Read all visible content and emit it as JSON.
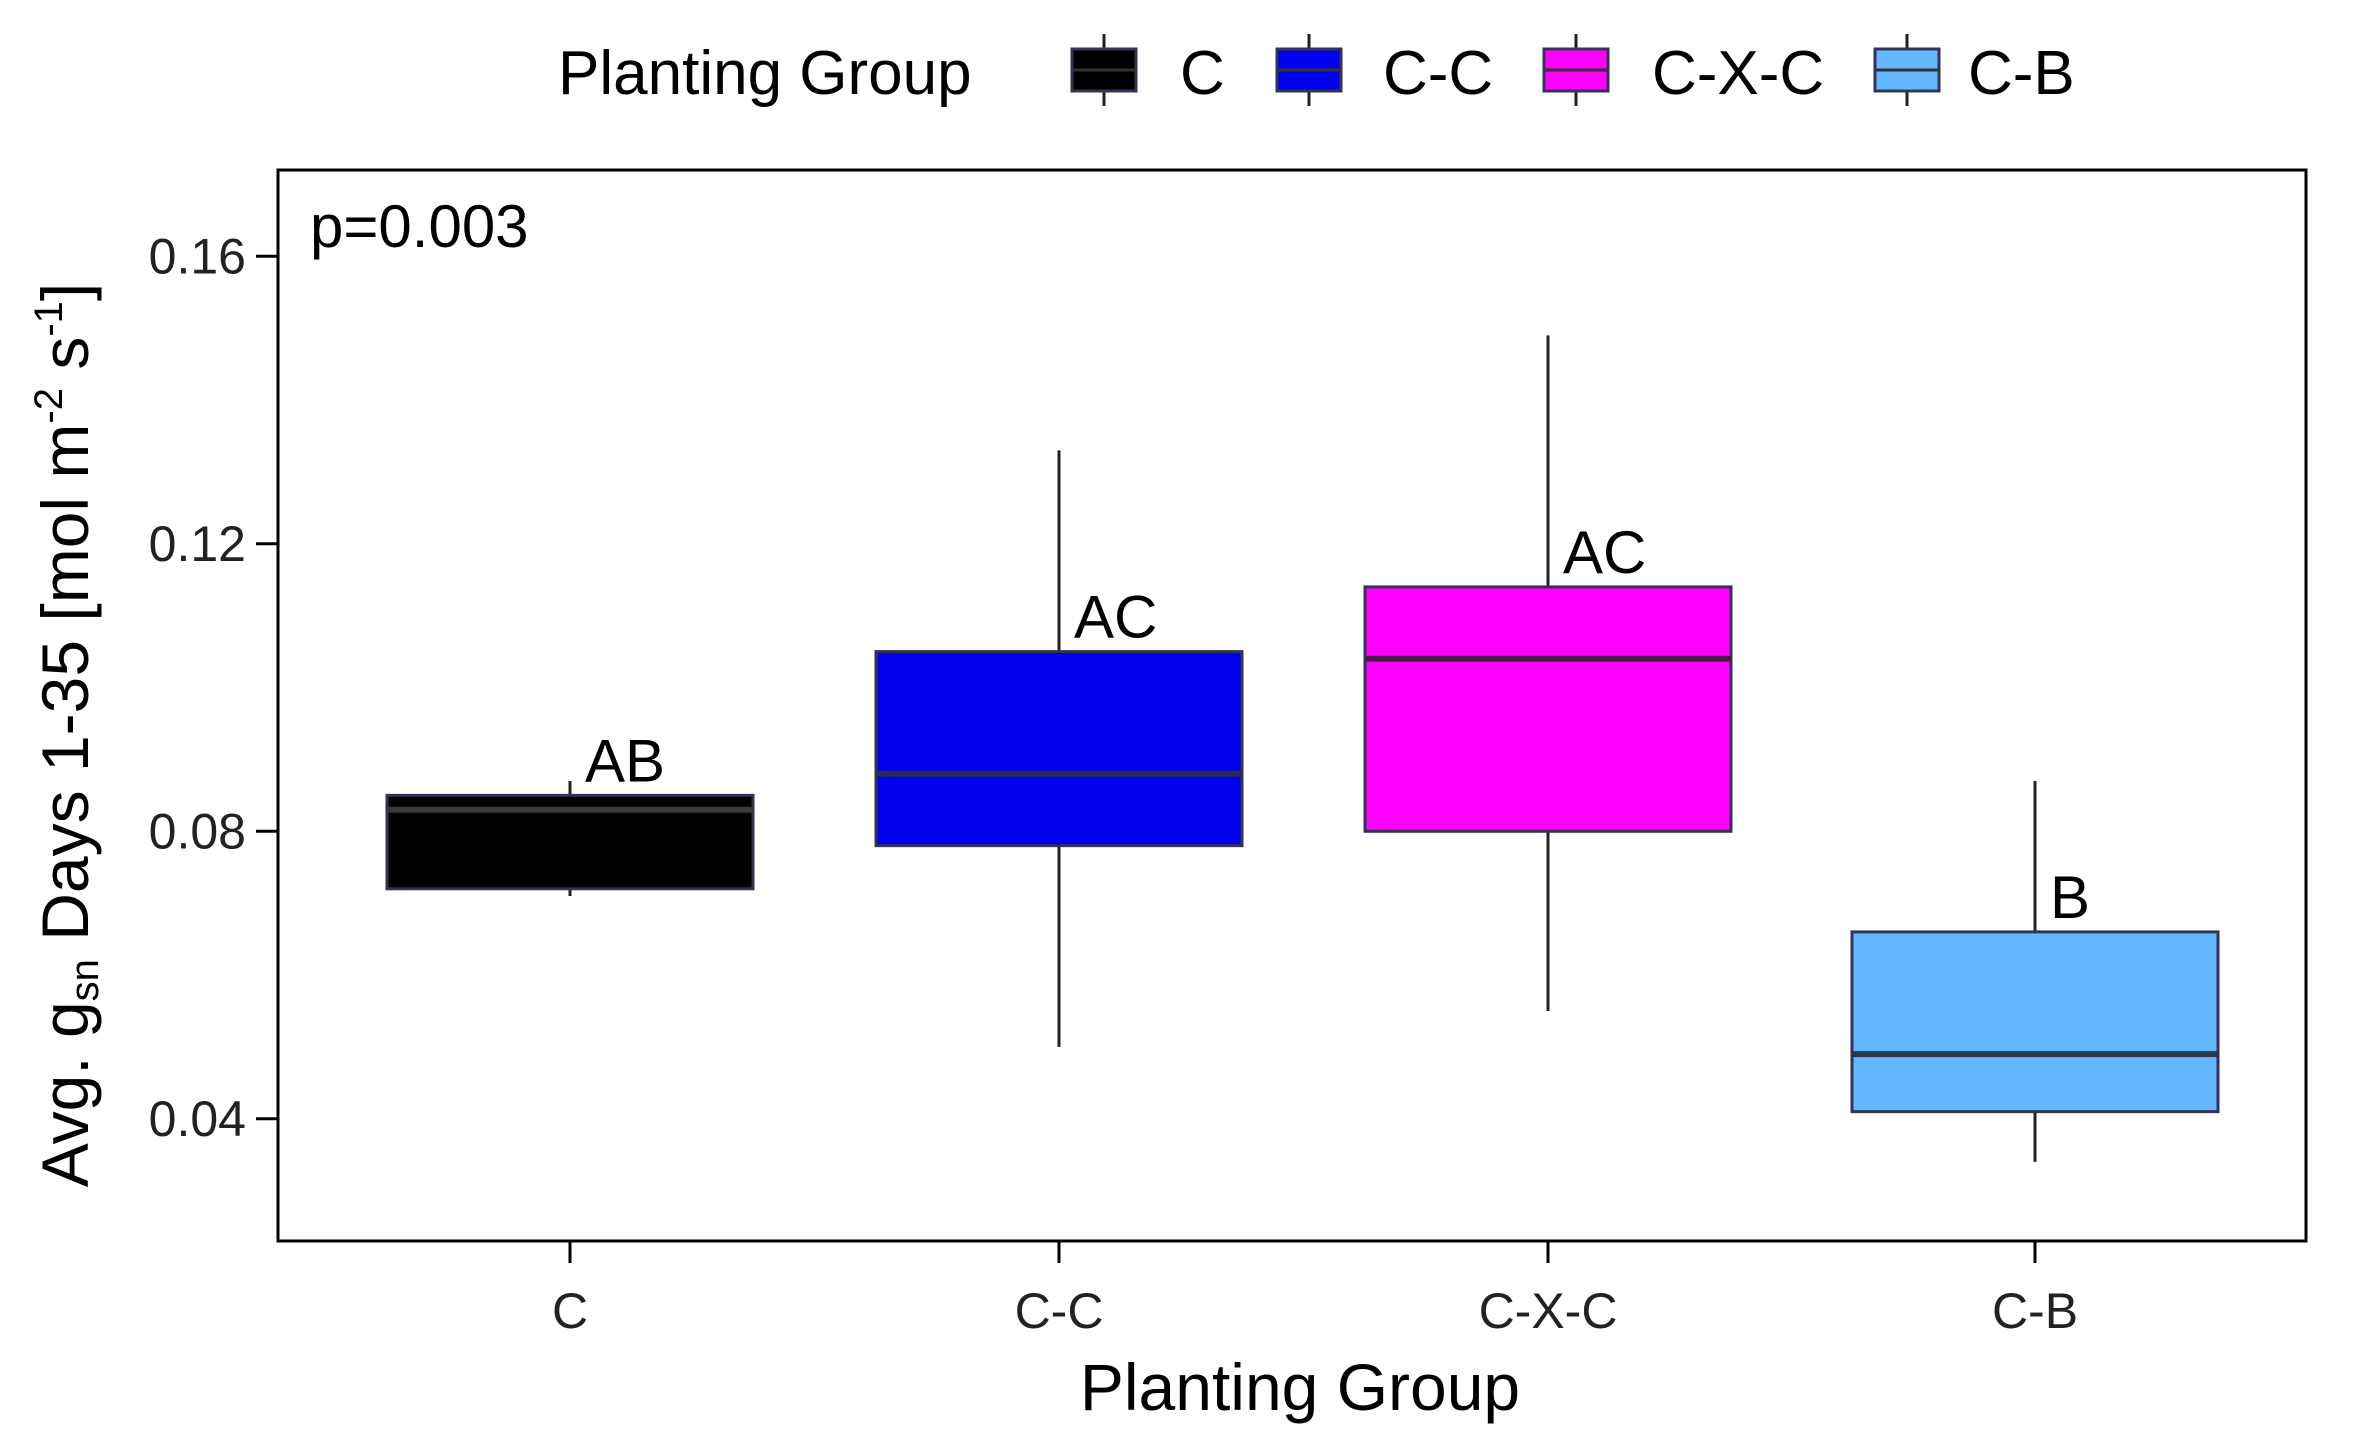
{
  "chart_data": {
    "type": "box",
    "legend": {
      "title": "Planting Group",
      "position": "top",
      "entries": [
        {
          "label": "C",
          "color": "#000000"
        },
        {
          "label": "C-C",
          "color": "#0000EE"
        },
        {
          "label": "C-X-C",
          "color": "#FF00FF"
        },
        {
          "label": "C-B",
          "color": "#63B8FF"
        }
      ]
    },
    "annotation": "p=0.003",
    "xlabel": "Planting Group",
    "ylabel": {
      "prefix": "Avg. g",
      "subscript": "sn",
      "mid": " Days 1-35 [mol m",
      "sup1": "-2",
      "mid2": " s",
      "sup2": "-1",
      "suffix": "]"
    },
    "ylim": [
      0.023,
      0.172
    ],
    "yticks": [
      0.04,
      0.08,
      0.12,
      0.16
    ],
    "ytick_labels": [
      "0.04",
      "0.08",
      "0.12",
      "0.16"
    ],
    "grid": false,
    "categories": [
      "C",
      "C-C",
      "C-X-C",
      "C-B"
    ],
    "boxes": [
      {
        "category": "C",
        "min": 0.071,
        "q1": 0.072,
        "median": 0.083,
        "q3": 0.085,
        "max": 0.087,
        "fill": "#000000",
        "median_color": "#3a3a3a",
        "letter": "AB"
      },
      {
        "category": "C-C",
        "min": 0.05,
        "q1": 0.078,
        "median": 0.088,
        "q3": 0.105,
        "max": 0.133,
        "fill": "#0000EE",
        "median_color": "#2b2b55",
        "letter": "AC"
      },
      {
        "category": "C-X-C",
        "min": 0.055,
        "q1": 0.08,
        "median": 0.104,
        "q3": 0.114,
        "max": 0.149,
        "fill": "#FF00FF",
        "median_color": "#4a1a4a",
        "letter": "AC"
      },
      {
        "category": "C-B",
        "min": 0.034,
        "q1": 0.041,
        "median": 0.049,
        "q3": 0.066,
        "max": 0.087,
        "fill": "#63B8FF",
        "median_color": "#2a3a4a",
        "letter": "B"
      }
    ]
  }
}
